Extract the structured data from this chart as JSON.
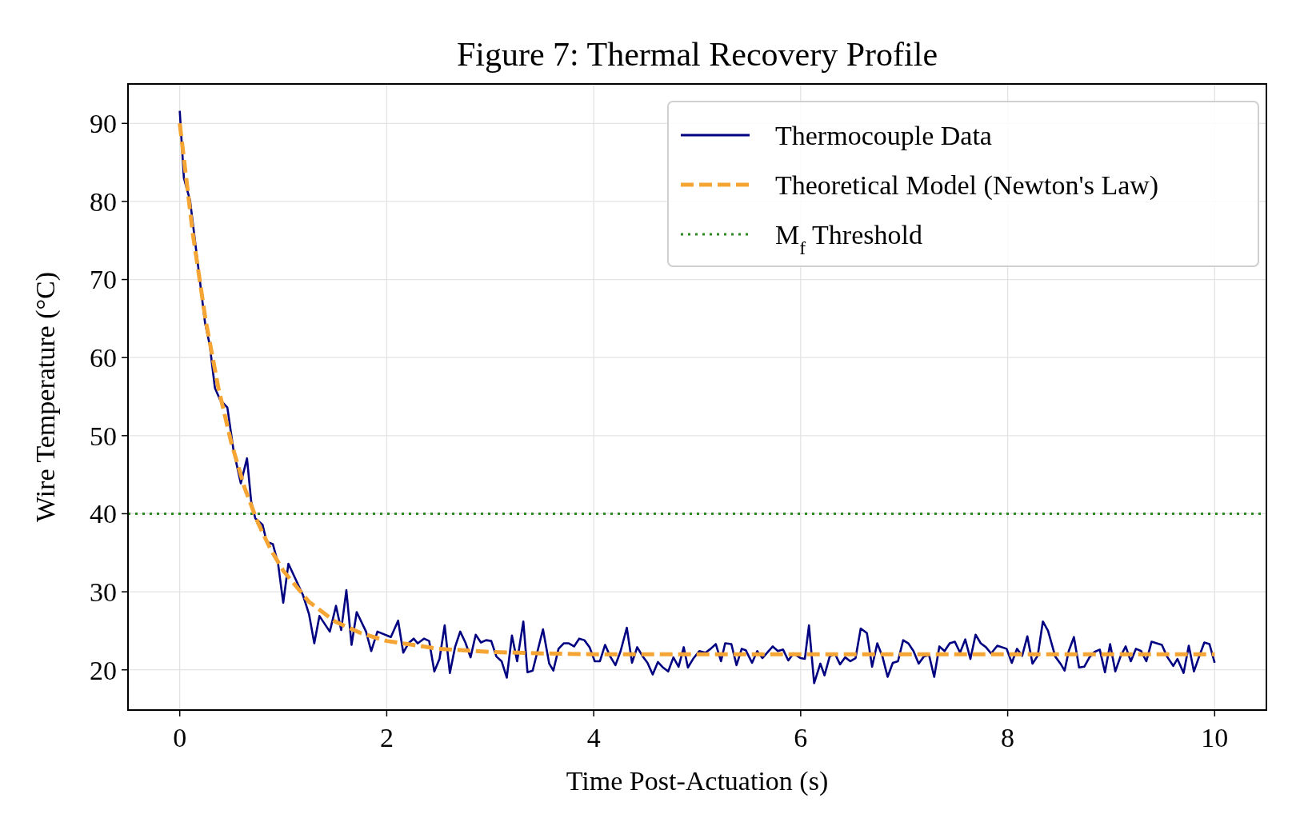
{
  "chart_data": {
    "type": "line",
    "title": "Figure 7: Thermal Recovery Profile",
    "xlabel": "Time Post-Actuation (s)",
    "ylabel": "Wire Temperature (°C)",
    "xlim": [
      -0.5,
      10.5
    ],
    "ylim": [
      14.85,
      95.05
    ],
    "xticks": [
      0,
      2,
      4,
      6,
      8,
      10
    ],
    "yticks": [
      20,
      30,
      40,
      50,
      60,
      70,
      80,
      90
    ],
    "grid": true,
    "legend": "top right",
    "series": [
      {
        "name": "Thermocouple Data",
        "color": "#000080",
        "line_style": "solid",
        "x": [
          0,
          0.04,
          0.1,
          0.245,
          0.29,
          0.34,
          0.39,
          0.46,
          0.52,
          0.59,
          0.65,
          0.69,
          0.73,
          0.8,
          0.84,
          0.9,
          0.95,
          1.0,
          1.05,
          1.19,
          1.25,
          1.3,
          1.35,
          1.45,
          1.51,
          1.56,
          1.61,
          1.66,
          1.71,
          1.8,
          1.85,
          1.91,
          2.04,
          2.11,
          2.16,
          2.21,
          2.26,
          2.3,
          2.36,
          2.41,
          2.46,
          2.51,
          2.56,
          2.61,
          2.66,
          2.71,
          2.76,
          2.81,
          2.86,
          2.91,
          2.96,
          3.01,
          3.06,
          3.11,
          3.16,
          3.21,
          3.26,
          3.32,
          3.36,
          3.41,
          3.51,
          3.57,
          3.61,
          3.66,
          3.71,
          3.76,
          3.81,
          3.86,
          3.91,
          3.96,
          4.01,
          4.06,
          4.11,
          4.16,
          4.21,
          4.26,
          4.32,
          4.37,
          4.42,
          4.47,
          4.52,
          4.57,
          4.62,
          4.67,
          4.72,
          4.77,
          4.82,
          4.87,
          4.91,
          4.96,
          5.02,
          5.08,
          5.13,
          5.18,
          5.23,
          5.27,
          5.33,
          5.38,
          5.43,
          5.47,
          5.53,
          5.58,
          5.63,
          5.73,
          5.78,
          5.83,
          5.88,
          5.93,
          6.0,
          6.04,
          6.08,
          6.13,
          6.19,
          6.23,
          6.28,
          6.33,
          6.38,
          6.43,
          6.48,
          6.53,
          6.58,
          6.64,
          6.69,
          6.74,
          6.79,
          6.84,
          6.89,
          6.94,
          6.99,
          7.04,
          7.09,
          7.14,
          7.19,
          7.24,
          7.29,
          7.34,
          7.39,
          7.44,
          7.49,
          7.54,
          7.59,
          7.64,
          7.69,
          7.74,
          7.79,
          7.84,
          7.9,
          7.99,
          8.04,
          8.09,
          8.14,
          8.19,
          8.24,
          8.29,
          8.34,
          8.39,
          8.46,
          8.51,
          8.55,
          8.59,
          8.64,
          8.69,
          8.74,
          8.79,
          8.84,
          8.89,
          8.94,
          8.99,
          9.04,
          9.09,
          9.14,
          9.19,
          9.24,
          9.29,
          9.34,
          9.39,
          9.44,
          9.49,
          9.54,
          9.6,
          9.64,
          9.7,
          9.75,
          9.8,
          9.85,
          9.9,
          9.95,
          10.0
        ],
        "values": [
          91.6,
          83,
          80.1,
          64.4,
          61.6,
          56.1,
          54.6,
          53.6,
          48.1,
          43.9,
          47.1,
          41.6,
          39.4,
          38.6,
          36.4,
          36.1,
          33.6,
          28.6,
          33.6,
          29.6,
          27.1,
          23.4,
          26.9,
          24.9,
          28.2,
          25.1,
          30.2,
          23.2,
          27.4,
          24.9,
          22.4,
          24.9,
          24.2,
          26.3,
          22.2,
          23.4,
          24.0,
          23.4,
          24.0,
          23.7,
          19.8,
          21.4,
          25.7,
          19.6,
          22.9,
          24.9,
          23.5,
          21.6,
          24.5,
          23.5,
          23.8,
          23.7,
          21.7,
          21.1,
          19.0,
          24.4,
          21.1,
          26.2,
          19.7,
          19.9,
          25.2,
          20.8,
          19.9,
          22.7,
          23.4,
          23.4,
          23.0,
          24.0,
          23.8,
          22.9,
          21.1,
          21.1,
          23.2,
          21.7,
          20.6,
          22.4,
          25.4,
          20.9,
          22.9,
          21.8,
          20.9,
          19.4,
          21.0,
          20.3,
          19.8,
          21.6,
          20.4,
          22.9,
          20.3,
          21.4,
          22.4,
          22.2,
          22.7,
          23.3,
          21.1,
          23.4,
          23.3,
          20.6,
          22.7,
          22.5,
          20.9,
          22.4,
          21.5,
          23.0,
          22.4,
          22.6,
          21.2,
          22.1,
          21.5,
          21.4,
          25.7,
          18.3,
          20.8,
          19.3,
          21.7,
          22.1,
          20.7,
          21.6,
          21.1,
          21.5,
          25.3,
          24.7,
          20.4,
          23.4,
          21.7,
          19.1,
          20.9,
          21.1,
          23.8,
          23.4,
          22.4,
          20.8,
          21.7,
          21.9,
          19.1,
          23.0,
          22.4,
          23.4,
          23.6,
          22.2,
          23.9,
          21.4,
          24.5,
          23.4,
          22.9,
          22.1,
          23.1,
          22.7,
          20.9,
          22.7,
          21.8,
          24.3,
          20.8,
          21.8,
          26.2,
          25.0,
          21.7,
          20.8,
          19.9,
          22.4,
          24.2,
          20.3,
          20.4,
          21.6,
          22.3,
          22.6,
          19.7,
          23.3,
          19.8,
          21.7,
          23.0,
          21.1,
          22.7,
          22.4,
          21.1,
          23.6,
          23.4,
          23.2,
          21.7,
          20.5,
          21.4,
          19.6,
          23.1,
          19.8,
          21.7,
          23.5,
          23.3,
          20.9
        ]
      },
      {
        "name": "Theoretical Model (Newton's Law)",
        "color": "#f5a533",
        "line_style": "dashed",
        "x": [
          0,
          0.125,
          0.25,
          0.375,
          0.5,
          0.625,
          0.75,
          0.875,
          1,
          1.25,
          1.5,
          1.75,
          2,
          2.5,
          3,
          3.5,
          4,
          5,
          6,
          7,
          8,
          9,
          10
        ],
        "values": [
          90,
          76.0,
          64.8,
          56.0,
          49.0,
          43.4,
          39.0,
          35.5,
          32.7,
          28.7,
          26.2,
          24.7,
          23.7,
          22.7,
          22.3,
          22.1,
          22.0,
          22.0,
          22.0,
          22.0,
          22.0,
          22.0,
          22.0
        ]
      }
    ],
    "ref_lines": [
      {
        "axis": "y",
        "value": 40,
        "label": "M$_{f}$ Threshold",
        "color": "#2a8a1f",
        "line_style": "dotted"
      }
    ]
  }
}
